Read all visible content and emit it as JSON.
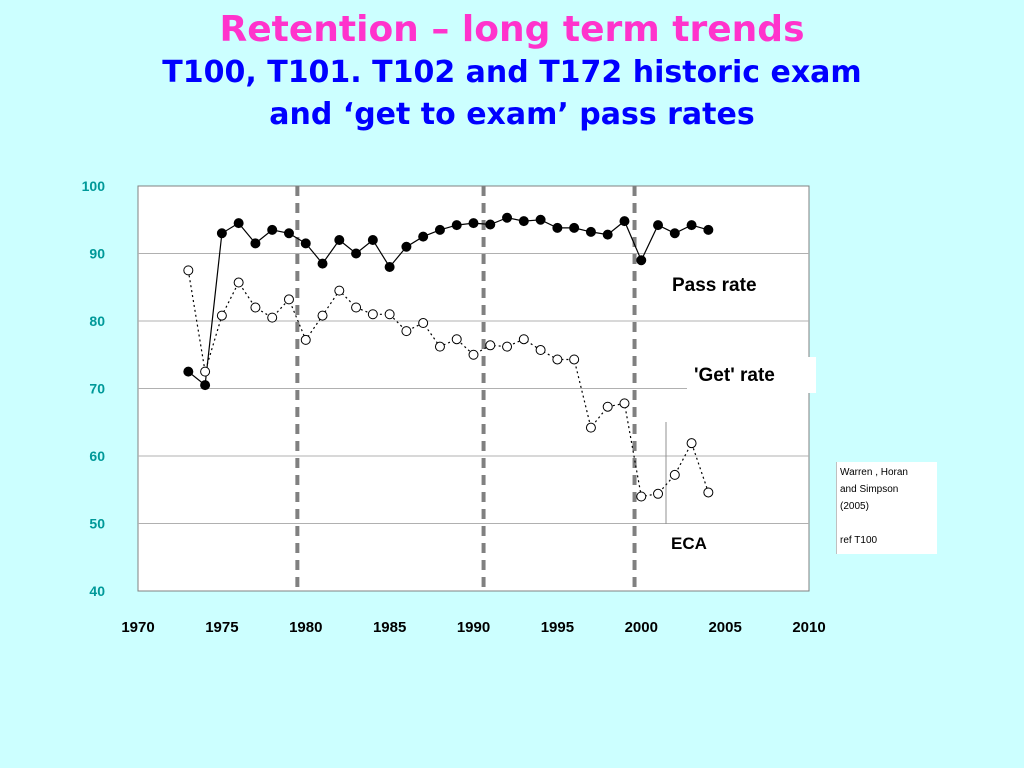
{
  "title": {
    "line1": "Retention – long term trends",
    "line2": "T100, T101. T102 and T172 historic exam",
    "line3": "and ‘get to exam’ pass rates",
    "line1_color": "#ff33cc",
    "line2_color": "#0000ff"
  },
  "citation": {
    "line1": "Warren , Horan",
    "line2": "and Simpson",
    "line3": "(2005)",
    "line4": "ref T100"
  },
  "chart_data": {
    "type": "line",
    "xlim": [
      1970,
      2010
    ],
    "ylim": [
      40,
      100
    ],
    "x_ticks": [
      "1970",
      "1975",
      "1980",
      "1985",
      "1990",
      "1995",
      "2000",
      "2005",
      "2010"
    ],
    "y_ticks": [
      "100",
      "90",
      "80",
      "70",
      "60",
      "50",
      "40"
    ],
    "tick_color": "#009999",
    "grid": "horizontal",
    "vertical_markers": [
      1979.5,
      1990.6,
      1999.6
    ],
    "series": [
      {
        "name": "Pass rate",
        "style": "solid",
        "marker": "filled",
        "points": [
          [
            1973,
            72.5
          ],
          [
            1974,
            70.5
          ],
          [
            1975,
            93
          ],
          [
            1976,
            94.5
          ],
          [
            1977,
            91.5
          ],
          [
            1978,
            93.5
          ],
          [
            1979,
            93
          ],
          [
            1980,
            91.5
          ],
          [
            1981,
            88.5
          ],
          [
            1982,
            92
          ],
          [
            1983,
            90
          ],
          [
            1984,
            92
          ],
          [
            1985,
            88
          ],
          [
            1986,
            91
          ],
          [
            1987,
            92.5
          ],
          [
            1988,
            93.5
          ],
          [
            1989,
            94.2
          ],
          [
            1990,
            94.5
          ],
          [
            1991,
            94.3
          ],
          [
            1992,
            95.3
          ],
          [
            1993,
            94.8
          ],
          [
            1994,
            95
          ],
          [
            1995,
            93.8
          ],
          [
            1996,
            93.8
          ],
          [
            1997,
            93.2
          ],
          [
            1998,
            92.8
          ],
          [
            1999,
            94.8
          ],
          [
            2000,
            89
          ],
          [
            2001,
            94.2
          ],
          [
            2002,
            93
          ],
          [
            2003,
            94.2
          ],
          [
            2004,
            93.5
          ]
        ]
      },
      {
        "name": "'Get' rate",
        "style": "dotted",
        "marker": "open",
        "points": [
          [
            1973,
            87.5
          ],
          [
            1974,
            72.5
          ],
          [
            1975,
            80.8
          ],
          [
            1976,
            85.7
          ],
          [
            1977,
            82
          ],
          [
            1978,
            80.5
          ],
          [
            1979,
            83.2
          ],
          [
            1980,
            77.2
          ],
          [
            1981,
            80.8
          ],
          [
            1982,
            84.5
          ],
          [
            1983,
            82
          ],
          [
            1984,
            81
          ],
          [
            1985,
            81
          ],
          [
            1986,
            78.5
          ],
          [
            1987,
            79.7
          ],
          [
            1988,
            76.2
          ],
          [
            1989,
            77.3
          ],
          [
            1990,
            75
          ],
          [
            1991,
            76.4
          ],
          [
            1992,
            76.2
          ],
          [
            1993,
            77.3
          ],
          [
            1994,
            75.7
          ],
          [
            1995,
            74.3
          ],
          [
            1996,
            74.3
          ],
          [
            1997,
            64.2
          ],
          [
            1998,
            67.3
          ],
          [
            1999,
            67.8
          ],
          [
            2000,
            54
          ],
          [
            2001,
            54.4
          ],
          [
            2002,
            57.2
          ],
          [
            2003,
            61.9
          ],
          [
            2004,
            54.6
          ]
        ]
      }
    ],
    "annotations": {
      "pass_rate": "Pass rate",
      "get_rate": "'Get' rate",
      "eca": "ECA"
    }
  }
}
